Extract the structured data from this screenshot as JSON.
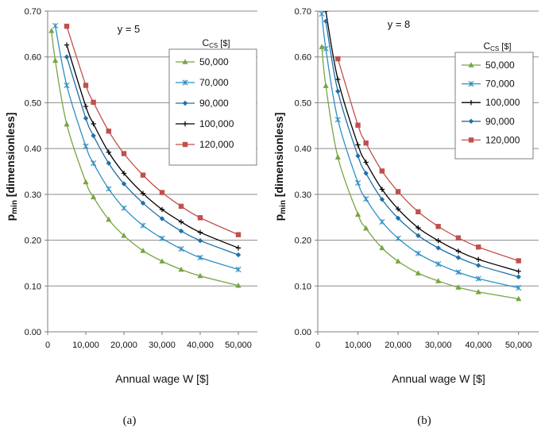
{
  "chart_data": [
    {
      "type": "line",
      "panel_label": "(a)",
      "annotation": "y = 5",
      "xlabel": "Annual  wage W [$]",
      "ylabel_main": "p",
      "ylabel_sub": "min",
      "ylabel_rest": " [dimensionless]",
      "xlim": [
        0,
        55000
      ],
      "ylim": [
        0,
        0.7
      ],
      "x_ticks": [
        0,
        10000,
        20000,
        30000,
        40000,
        50000
      ],
      "x_tick_labels": [
        "0",
        "10,000",
        "20,000",
        "30,000",
        "40,000",
        "50,000"
      ],
      "y_ticks": [
        0,
        0.1,
        0.2,
        0.3,
        0.4,
        0.5,
        0.6,
        0.7
      ],
      "y_tick_labels": [
        "0.00",
        "0.10",
        "0.20",
        "0.30",
        "0.40",
        "0.50",
        "0.60",
        "0.70"
      ],
      "grid": "horizontal",
      "legend_title_main": "C",
      "legend_title_sub": "CS",
      "legend_title_rest": " [$]",
      "legend_position": "top-right",
      "series": [
        {
          "name": "50,000",
          "color": "#77a543",
          "marker": "triangle",
          "x": [
            1000,
            2000,
            5000,
            10000,
            12000,
            16000,
            20000,
            25000,
            30000,
            35000,
            40000,
            50000
          ],
          "y": [
            0.657,
            0.592,
            0.453,
            0.327,
            0.294,
            0.245,
            0.21,
            0.177,
            0.154,
            0.136,
            0.122,
            0.101
          ]
        },
        {
          "name": "70,000",
          "color": "#2e8fc2",
          "marker": "x",
          "x": [
            2000,
            5000,
            10000,
            12000,
            16000,
            20000,
            25000,
            30000,
            35000,
            40000,
            50000
          ],
          "y": [
            0.668,
            0.538,
            0.405,
            0.368,
            0.312,
            0.27,
            0.232,
            0.204,
            0.181,
            0.162,
            0.136
          ]
        },
        {
          "name": "90,000",
          "color": "#1f6fa8",
          "marker": "diamond",
          "x": [
            5000,
            10000,
            12000,
            16000,
            20000,
            25000,
            30000,
            35000,
            40000,
            50000
          ],
          "y": [
            0.6,
            0.466,
            0.428,
            0.368,
            0.323,
            0.281,
            0.247,
            0.22,
            0.199,
            0.168
          ]
        },
        {
          "name": "100,000",
          "color": "#000000",
          "marker": "plus",
          "x": [
            5000,
            10000,
            12000,
            16000,
            20000,
            25000,
            30000,
            35000,
            40000,
            50000
          ],
          "y": [
            0.626,
            0.492,
            0.454,
            0.392,
            0.346,
            0.302,
            0.267,
            0.24,
            0.217,
            0.183
          ]
        },
        {
          "name": "120,000",
          "color": "#c0504d",
          "marker": "square",
          "x": [
            5000,
            10000,
            12000,
            16000,
            20000,
            25000,
            30000,
            35000,
            40000,
            50000
          ],
          "y": [
            0.667,
            0.538,
            0.501,
            0.438,
            0.389,
            0.342,
            0.304,
            0.274,
            0.249,
            0.212
          ]
        }
      ]
    },
    {
      "type": "line",
      "panel_label": "(b)",
      "annotation": "y = 8",
      "xlabel": "Annual  wage W [$]",
      "ylabel_main": "p",
      "ylabel_sub": "min",
      "ylabel_rest": " [dimensionless]",
      "xlim": [
        0,
        55000
      ],
      "ylim": [
        0,
        0.7
      ],
      "x_ticks": [
        0,
        10000,
        20000,
        30000,
        40000,
        50000
      ],
      "x_tick_labels": [
        "0",
        "10,000",
        "20,000",
        "30,000",
        "40,000",
        "50,000"
      ],
      "y_ticks": [
        0,
        0.1,
        0.2,
        0.3,
        0.4,
        0.5,
        0.6,
        0.7
      ],
      "y_tick_labels": [
        "0.00",
        "0.10",
        "0.20",
        "0.30",
        "0.40",
        "0.50",
        "0.60",
        "0.70"
      ],
      "grid": "horizontal",
      "legend_title_main": "C",
      "legend_title_sub": "CS",
      "legend_title_rest": " [$]",
      "legend_position": "top-right",
      "series": [
        {
          "name": "50,000",
          "color": "#77a543",
          "marker": "triangle",
          "x": [
            1000,
            2000,
            5000,
            10000,
            12000,
            16000,
            20000,
            25000,
            30000,
            35000,
            40000,
            50000
          ],
          "y": [
            0.622,
            0.537,
            0.381,
            0.256,
            0.226,
            0.183,
            0.154,
            0.128,
            0.111,
            0.097,
            0.087,
            0.072
          ]
        },
        {
          "name": "70,000",
          "color": "#2e8fc2",
          "marker": "x",
          "x": [
            1000,
            2000,
            5000,
            10000,
            12000,
            16000,
            20000,
            25000,
            30000,
            35000,
            40000,
            50000
          ],
          "y": [
            0.694,
            0.618,
            0.463,
            0.325,
            0.29,
            0.24,
            0.204,
            0.171,
            0.148,
            0.13,
            0.116,
            0.096
          ]
        },
        {
          "name": "100,000",
          "color": "#000000",
          "marker": "plus",
          "x": [
            2000,
            5000,
            10000,
            12000,
            16000,
            20000,
            25000,
            30000,
            35000,
            40000,
            50000
          ],
          "y": [
            0.7,
            0.551,
            0.408,
            0.37,
            0.311,
            0.268,
            0.227,
            0.199,
            0.176,
            0.158,
            0.132
          ]
        },
        {
          "name": "90,000",
          "color": "#1f6fa8",
          "marker": "diamond",
          "x": [
            2000,
            5000,
            10000,
            12000,
            16000,
            20000,
            25000,
            30000,
            35000,
            40000,
            50000
          ],
          "y": [
            0.678,
            0.525,
            0.384,
            0.346,
            0.289,
            0.248,
            0.21,
            0.183,
            0.162,
            0.145,
            0.12
          ]
        },
        {
          "name": "120,000",
          "color": "#c0504d",
          "marker": "square",
          "x": [
            5000,
            10000,
            12000,
            16000,
            20000,
            25000,
            30000,
            35000,
            40000,
            50000
          ],
          "y": [
            0.596,
            0.451,
            0.412,
            0.351,
            0.306,
            0.262,
            0.23,
            0.205,
            0.185,
            0.155
          ]
        }
      ]
    }
  ]
}
